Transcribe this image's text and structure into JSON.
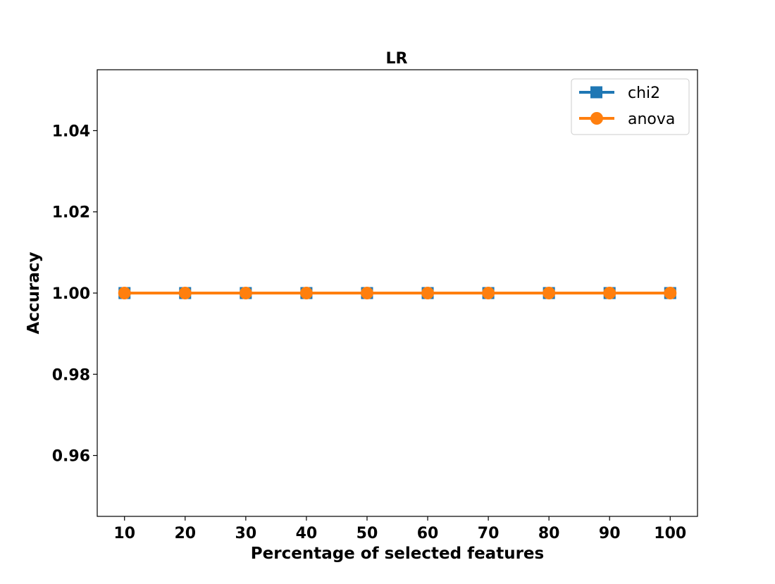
{
  "chart_data": {
    "type": "line",
    "title": "LR",
    "xlabel": "Percentage of selected features",
    "ylabel": "Accuracy",
    "x": [
      10,
      20,
      30,
      40,
      50,
      60,
      70,
      80,
      90,
      100
    ],
    "xticks": [
      10,
      20,
      30,
      40,
      50,
      60,
      70,
      80,
      90,
      100
    ],
    "xtick_labels": [
      "10",
      "20",
      "30",
      "40",
      "50",
      "60",
      "70",
      "80",
      "90",
      "100"
    ],
    "yticks": [
      0.96,
      0.98,
      1.0,
      1.02,
      1.04
    ],
    "ytick_labels": [
      "0.96",
      "0.98",
      "1.00",
      "1.02",
      "1.04"
    ],
    "xlim": [
      5.5,
      104.5
    ],
    "ylim": [
      0.945,
      1.055
    ],
    "grid": false,
    "legend_position": "upper right",
    "series": [
      {
        "name": "chi2",
        "marker": "square",
        "color": "#1f77b4",
        "values": [
          1.0,
          1.0,
          1.0,
          1.0,
          1.0,
          1.0,
          1.0,
          1.0,
          1.0,
          1.0
        ]
      },
      {
        "name": "anova",
        "marker": "circle",
        "color": "#ff7f0e",
        "values": [
          1.0,
          1.0,
          1.0,
          1.0,
          1.0,
          1.0,
          1.0,
          1.0,
          1.0,
          1.0
        ]
      }
    ]
  }
}
